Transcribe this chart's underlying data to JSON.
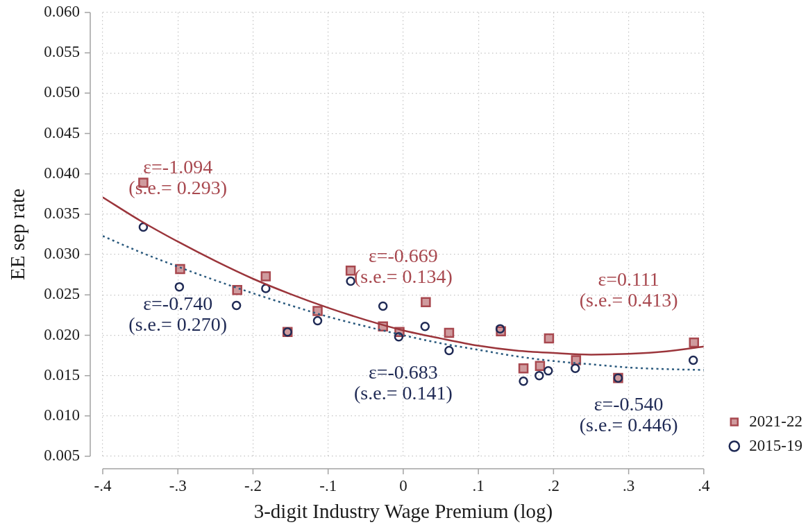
{
  "chart_data": {
    "type": "scatter",
    "xlabel": "3-digit Industry Wage Premium (log)",
    "ylabel": "EE sep rate",
    "xlim": [
      -0.4,
      0.4
    ],
    "ylim": [
      0.005,
      0.06
    ],
    "xticks": [
      {
        "value": -0.4,
        "label": "-.4"
      },
      {
        "value": -0.3,
        "label": "-.3"
      },
      {
        "value": -0.2,
        "label": "-.2"
      },
      {
        "value": -0.1,
        "label": "-.1"
      },
      0,
      {
        "value": 0.1,
        "label": ".1"
      },
      {
        "value": 0.2,
        "label": ".2"
      },
      {
        "value": 0.3,
        "label": ".3"
      },
      {
        "value": 0.4,
        "label": ".4"
      }
    ],
    "yticks": [
      {
        "value": 0.005,
        "label": "0.005"
      },
      {
        "value": 0.01,
        "label": "0.010"
      },
      {
        "value": 0.015,
        "label": "0.015"
      },
      {
        "value": 0.02,
        "label": "0.020"
      },
      {
        "value": 0.025,
        "label": "0.025"
      },
      {
        "value": 0.03,
        "label": "0.030"
      },
      {
        "value": 0.035,
        "label": "0.035"
      },
      {
        "value": 0.04,
        "label": "0.040"
      },
      {
        "value": 0.045,
        "label": "0.045"
      },
      {
        "value": 0.05,
        "label": "0.050"
      },
      {
        "value": 0.055,
        "label": "0.055"
      },
      {
        "value": 0.06,
        "label": "0.060"
      }
    ],
    "grid": true,
    "legend": "bottom right",
    "series": [
      {
        "name": "2021-22",
        "marker": "square",
        "color": "#a8484f",
        "x": [
          -0.346,
          -0.297,
          -0.221,
          -0.183,
          -0.154,
          -0.114,
          -0.07,
          -0.027,
          -0.005,
          0.03,
          0.061,
          0.13,
          0.16,
          0.182,
          0.194,
          0.23,
          0.286,
          0.387
        ],
        "values": [
          0.0389,
          0.0282,
          0.0256,
          0.0273,
          0.0204,
          0.023,
          0.028,
          0.0211,
          0.0204,
          0.0241,
          0.0203,
          0.0205,
          0.0159,
          0.0162,
          0.0196,
          0.0169,
          0.0147,
          0.0191
        ]
      },
      {
        "name": "2015-19",
        "marker": "circle",
        "color": "#1f2a55",
        "x": [
          -0.346,
          -0.298,
          -0.222,
          -0.183,
          -0.154,
          -0.114,
          -0.07,
          -0.027,
          -0.006,
          0.029,
          0.061,
          0.129,
          0.16,
          0.181,
          0.193,
          0.229,
          0.286,
          0.386
        ],
        "values": [
          0.0334,
          0.026,
          0.0237,
          0.0258,
          0.0204,
          0.0218,
          0.0267,
          0.0236,
          0.0198,
          0.0211,
          0.0181,
          0.0208,
          0.0143,
          0.015,
          0.0156,
          0.0159,
          0.0147,
          0.0169
        ]
      },
      {
        "type": "line",
        "color": "#9b353b",
        "line_style": "solid",
        "x": [
          -0.4,
          -0.35,
          -0.3,
          -0.25,
          -0.2,
          -0.15,
          -0.1,
          -0.05,
          0,
          0.05,
          0.1,
          0.15,
          0.2,
          0.25,
          0.3,
          0.35,
          0.4
        ],
        "values": [
          0.0371,
          0.0342,
          0.0316,
          0.0292,
          0.027,
          0.0251,
          0.0234,
          0.0219,
          0.0206,
          0.0196,
          0.0187,
          0.0181,
          0.0178,
          0.0176,
          0.0177,
          0.018,
          0.0186
        ]
      },
      {
        "type": "line",
        "color": "#2b5a7e",
        "line_style": "dotted",
        "x": [
          -0.4,
          -0.35,
          -0.3,
          -0.25,
          -0.2,
          -0.15,
          -0.1,
          -0.05,
          0,
          0.05,
          0.1,
          0.15,
          0.2,
          0.25,
          0.3,
          0.35,
          0.4
        ],
        "values": [
          0.0323,
          0.0303,
          0.0285,
          0.0268,
          0.0252,
          0.0237,
          0.0223,
          0.0211,
          0.02,
          0.019,
          0.0182,
          0.0174,
          0.0168,
          0.0164,
          0.016,
          0.0158,
          0.0157
        ]
      }
    ],
    "annotations": [
      "ε=-1.094\n(s.e.= 0.293)",
      "ε=-0.740\n(s.e.= 0.270)",
      "ε=-0.669\n(s.e.= 0.134)",
      "ε=-0.683\n(s.e.= 0.141)",
      "ε=0.111\n(s.e.= 0.413)",
      "ε=-0.540\n(s.e.= 0.446)"
    ]
  }
}
